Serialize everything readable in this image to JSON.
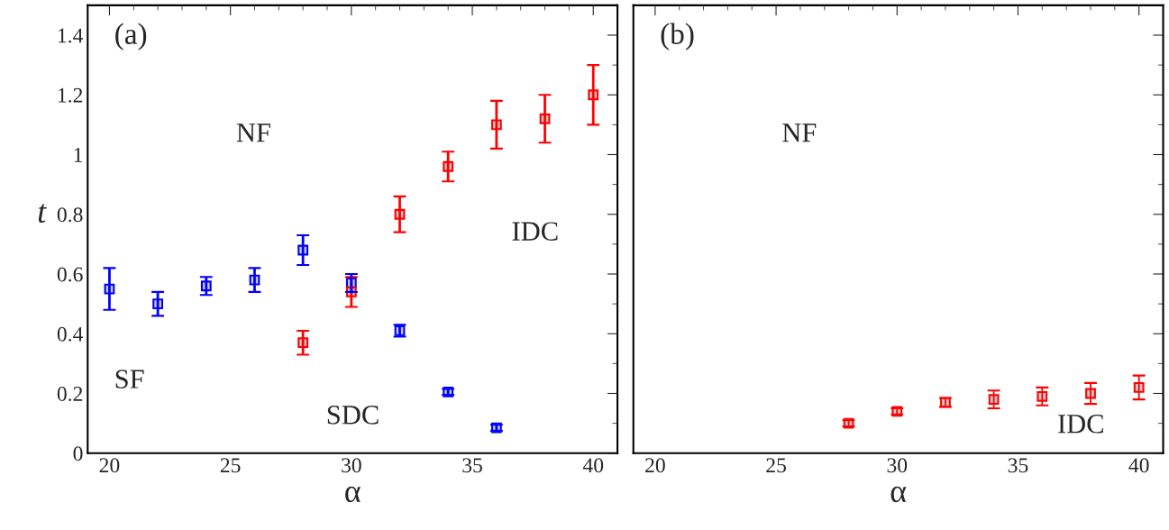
{
  "chart_data": [
    {
      "type": "scatter",
      "xlabel": "α",
      "ylabel": "t",
      "xlim": [
        19.1,
        41
      ],
      "ylim": [
        0,
        1.5
      ],
      "xticks": [
        20,
        25,
        30,
        35,
        40
      ],
      "yticks": [
        0,
        0.2,
        0.4,
        0.6,
        0.8,
        1,
        1.2,
        1.4
      ],
      "marker": "square",
      "grid": false,
      "annotations": [
        "(a)",
        "NF",
        "SF",
        "SDC",
        "IDC"
      ],
      "series": [
        {
          "color": "#0000ff",
          "x": [
            20,
            22,
            24,
            26,
            28,
            30,
            32,
            34,
            36
          ],
          "values": [
            0.55,
            0.5,
            0.56,
            0.58,
            0.68,
            0.57,
            0.41,
            0.205,
            0.085
          ],
          "errors": [
            [
              0.48,
              0.62
            ],
            [
              0.46,
              0.54
            ],
            [
              0.53,
              0.59
            ],
            [
              0.54,
              0.62
            ],
            [
              0.63,
              0.73
            ],
            [
              0.54,
              0.6
            ],
            [
              0.39,
              0.43
            ],
            [
              0.195,
              0.215
            ],
            [
              0.075,
              0.095
            ]
          ]
        },
        {
          "color": "#ff0000",
          "x": [
            28,
            30,
            32,
            34,
            36,
            38,
            40
          ],
          "values": [
            0.37,
            0.54,
            0.8,
            0.96,
            1.1,
            1.12,
            1.2
          ],
          "errors": [
            [
              0.33,
              0.41
            ],
            [
              0.49,
              0.59
            ],
            [
              0.74,
              0.86
            ],
            [
              0.91,
              1.01
            ],
            [
              1.02,
              1.18
            ],
            [
              1.04,
              1.2
            ],
            [
              1.1,
              1.3
            ]
          ]
        }
      ]
    },
    {
      "type": "scatter",
      "xlabel": "α",
      "xlim": [
        19.1,
        41
      ],
      "ylim": [
        0,
        1.5
      ],
      "xticks": [
        20,
        25,
        30,
        35,
        40
      ],
      "yticks": [
        0,
        0.2,
        0.4,
        0.6,
        0.8,
        1,
        1.2,
        1.4
      ],
      "tick_labels": "x",
      "marker": "square",
      "grid": false,
      "annotations": [
        "(b)",
        "NF",
        "IDC"
      ],
      "series": [
        {
          "color": "#ff0000",
          "x": [
            28,
            30,
            32,
            34,
            36,
            38,
            40
          ],
          "values": [
            0.1,
            0.14,
            0.17,
            0.18,
            0.19,
            0.2,
            0.22
          ],
          "errors": [
            [
              0.09,
              0.11
            ],
            [
              0.13,
              0.15
            ],
            [
              0.155,
              0.185
            ],
            [
              0.15,
              0.21
            ],
            [
              0.16,
              0.22
            ],
            [
              0.165,
              0.235
            ],
            [
              0.18,
              0.26
            ]
          ]
        }
      ]
    }
  ]
}
